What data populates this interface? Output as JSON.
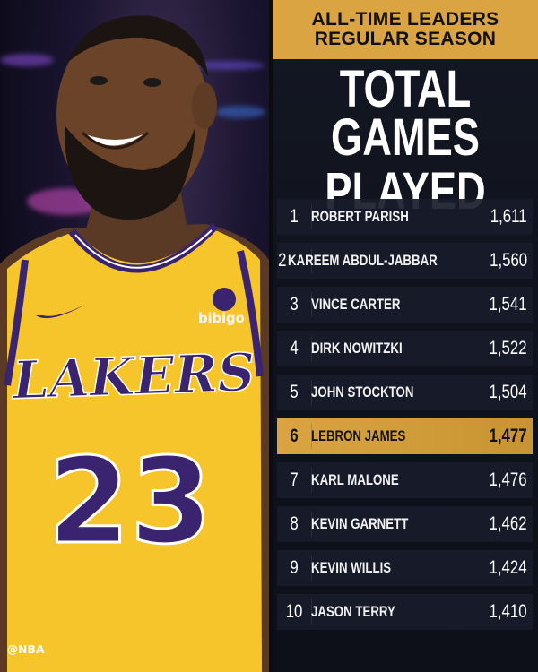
{
  "credit": "@NBA",
  "jersey": {
    "sponsor": "bibigo",
    "team": "LAKERS",
    "number": "23"
  },
  "header": {
    "line1": "ALL-TIME LEADERS",
    "line2": "REGULAR SEASON"
  },
  "title": {
    "line1": "TOTAL",
    "line2": "GAMES PLAYED"
  },
  "leaders": [
    {
      "rank": "1",
      "name": "ROBERT PARISH",
      "games": "1,611",
      "highlight": false
    },
    {
      "rank": "2",
      "name": "KAREEM ABDUL-JABBAR",
      "games": "1,560",
      "highlight": false
    },
    {
      "rank": "3",
      "name": "VINCE CARTER",
      "games": "1,541",
      "highlight": false
    },
    {
      "rank": "4",
      "name": "DIRK NOWITZKI",
      "games": "1,522",
      "highlight": false
    },
    {
      "rank": "5",
      "name": "JOHN STOCKTON",
      "games": "1,504",
      "highlight": false
    },
    {
      "rank": "6",
      "name": "LEBRON JAMES",
      "games": "1,477",
      "highlight": true
    },
    {
      "rank": "7",
      "name": "KARL MALONE",
      "games": "1,476",
      "highlight": false
    },
    {
      "rank": "8",
      "name": "KEVIN GARNETT",
      "games": "1,462",
      "highlight": false
    },
    {
      "rank": "9",
      "name": "KEVIN WILLIS",
      "games": "1,424",
      "highlight": false
    },
    {
      "rank": "10",
      "name": "JASON TERRY",
      "games": "1,410",
      "highlight": false
    }
  ],
  "colors": {
    "gold": "#d9a441",
    "jersey_yellow": "#f6c52c",
    "jersey_purple": "#3a2470",
    "panel_bg": "#10131d"
  }
}
